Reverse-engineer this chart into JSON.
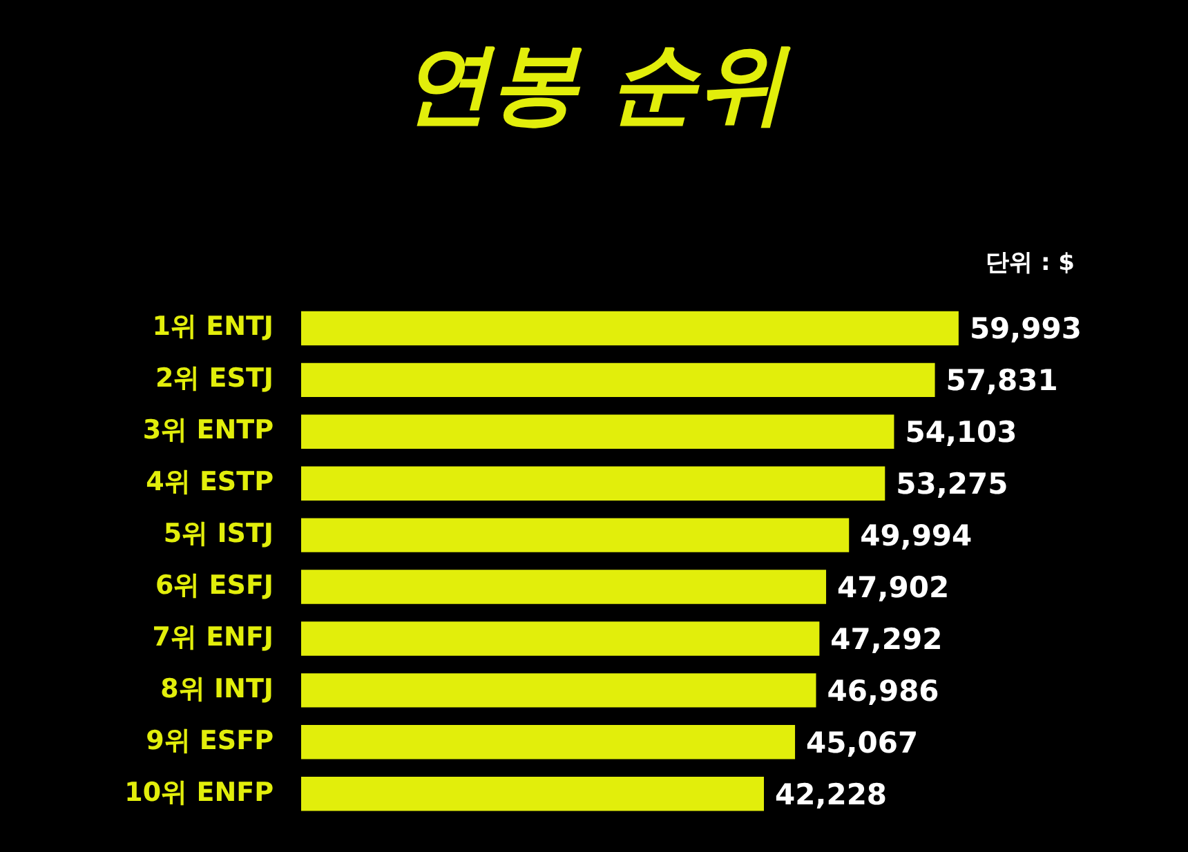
{
  "chart_data": {
    "type": "bar",
    "orientation": "horizontal",
    "title": "연봉 순위",
    "categories": [
      "1위 ENTJ",
      "2위 ESTJ",
      "3위 ENTP",
      "4위 ESTP",
      "5위 ISTJ",
      "6위 ESFJ",
      "7위 ENFJ",
      "8위 INTJ",
      "9위 ESFP",
      "10위 ENFP"
    ],
    "values": [
      59993,
      57831,
      54103,
      53275,
      49994,
      47902,
      47292,
      46986,
      45067,
      42228
    ],
    "value_labels": [
      "59,993",
      "57,831",
      "54,103",
      "53,275",
      "49,994",
      "47,902",
      "47,292",
      "46,986",
      "45,067",
      "42,228"
    ],
    "color": "#e2ee0b",
    "tick_labels": "y",
    "annotations": [
      "단위 : $"
    ]
  }
}
